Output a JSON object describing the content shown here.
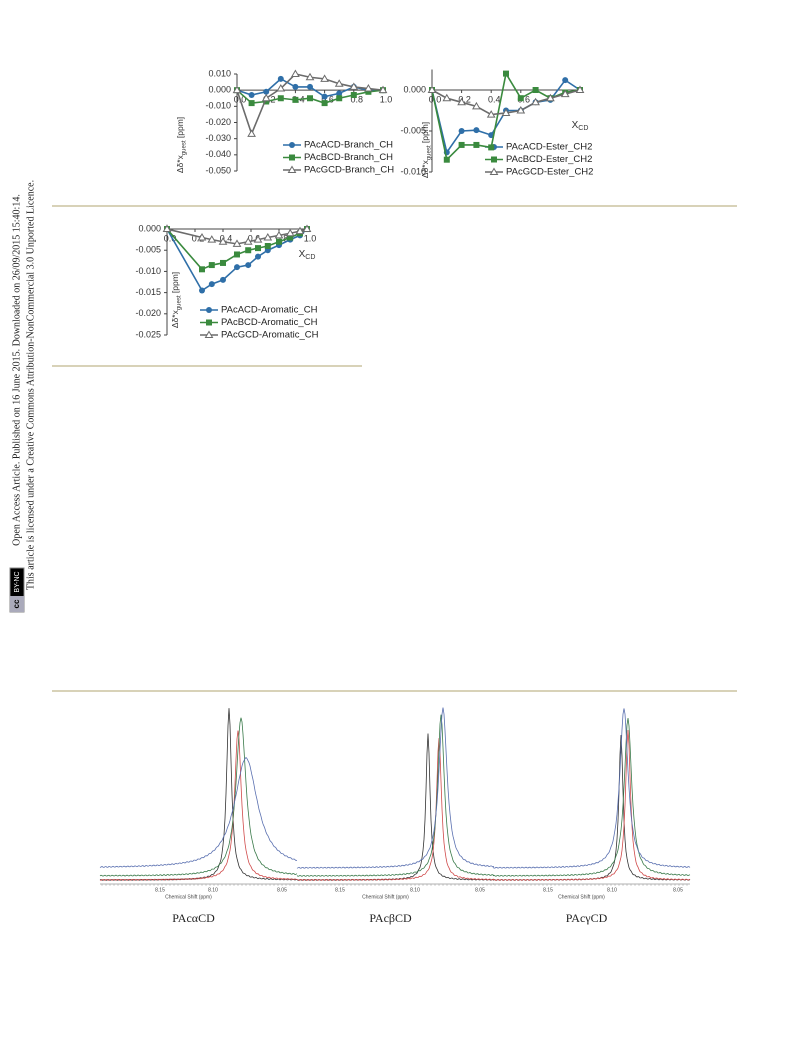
{
  "side_note": {
    "line1": "Open Access Article. Published on 16 June 2015. Downloaded on 26/09/2015 15:40:14.",
    "line2": "This article is licensed under a Creative Commons Attribution-NonCommercial 3.0 Unported Licence.",
    "badge_icon": "cc",
    "badge_text": "BY-NC"
  },
  "chart_data": [
    {
      "type": "line",
      "x": [
        0,
        0.1,
        0.2,
        0.3,
        0.4,
        0.5,
        0.6,
        0.7,
        0.8,
        0.9,
        1.0
      ],
      "xlim": [
        0,
        1
      ],
      "xticks": [
        {
          "value": 0,
          "label": "0.0"
        },
        0.2,
        0.4,
        0.6,
        0.8,
        {
          "value": 1,
          "label": "1.0"
        }
      ],
      "ylim": [
        -0.05,
        0.01
      ],
      "yticks": [
        {
          "value": 0.01,
          "label": "0.010"
        },
        {
          "value": 0,
          "label": "0.000"
        },
        {
          "value": -0.01,
          "label": "-0.010"
        },
        {
          "value": -0.02,
          "label": "-0.020"
        },
        {
          "value": -0.03,
          "label": "-0.030"
        },
        {
          "value": -0.04,
          "label": "-0.040"
        },
        {
          "value": -0.05,
          "label": "-0.050"
        }
      ],
      "ylabel": {
        "symbol": "Δδ*x",
        "sub": "guest",
        "unit": " [ppm]"
      },
      "series": [
        {
          "name": "PAcACD-Branch_CH",
          "color": "#2f6fa8",
          "marker": "circle",
          "values": [
            0,
            -0.003,
            -0.001,
            0.007,
            0.002,
            0.002,
            -0.004,
            -0.002,
            0.002,
            0,
            0
          ]
        },
        {
          "name": "PAcBCD-Branch_CH",
          "color": "#3a8a3e",
          "marker": "square",
          "values": [
            0,
            -0.008,
            -0.007,
            -0.005,
            -0.006,
            -0.005,
            -0.008,
            -0.005,
            -0.003,
            -0.001,
            0
          ]
        },
        {
          "name": "PAcGCD-Branch_CH",
          "color": "#6b6b6b",
          "marker": "triangle",
          "values": [
            0,
            -0.027,
            -0.005,
            0.001,
            0.01,
            0.008,
            0.007,
            0.004,
            0.002,
            0.001,
            0
          ]
        }
      ]
    },
    {
      "type": "line",
      "x": [
        0,
        0.1,
        0.2,
        0.3,
        0.4,
        0.5,
        0.6,
        0.7,
        0.8,
        0.9,
        1.0
      ],
      "xlim": [
        0,
        1
      ],
      "xticks": [
        {
          "value": 0,
          "label": "0.0"
        },
        0.2,
        0.4,
        0.6
      ],
      "ylim": [
        -0.01,
        0.0025
      ],
      "yticks": [
        {
          "value": 0,
          "label": "0.000"
        },
        {
          "value": -0.005,
          "label": "-0.005"
        },
        {
          "value": -0.01,
          "label": "-0.010"
        }
      ],
      "xlabel": {
        "text": "X",
        "sub": "CD"
      },
      "ylabel": {
        "symbol": "Δδ*x",
        "sub": "guest",
        "unit": " [ppm]"
      },
      "series": [
        {
          "name": "PAcACD-Ester_CH2",
          "color": "#2f6fa8",
          "marker": "circle",
          "values": [
            0,
            -0.0076,
            -0.005,
            -0.0049,
            -0.0055,
            -0.0025,
            -0.0025,
            -0.0015,
            -0.0012,
            0.0012,
            0
          ]
        },
        {
          "name": "PAcBCD-Ester_CH2",
          "color": "#3a8a3e",
          "marker": "square",
          "values": [
            0,
            -0.0085,
            -0.0067,
            -0.0067,
            -0.007,
            0.002,
            -0.001,
            0,
            -0.001,
            -0.0003,
            0
          ]
        },
        {
          "name": "PAcGCD-Ester_CH2",
          "color": "#6b6b6b",
          "marker": "triangle",
          "values": [
            0,
            -0.001,
            -0.0015,
            -0.002,
            -0.003,
            -0.0028,
            -0.0025,
            -0.0015,
            -0.001,
            -0.0005,
            0
          ]
        }
      ]
    },
    {
      "type": "line",
      "x": [
        0,
        0.25,
        0.32,
        0.4,
        0.5,
        0.58,
        0.65,
        0.72,
        0.8,
        0.88,
        0.95,
        1.0
      ],
      "xlim": [
        0,
        1
      ],
      "xticks": [
        {
          "value": 0,
          "label": "0.0"
        },
        0.2,
        0.4,
        0.6,
        0.8,
        {
          "value": 1,
          "label": "1.0"
        }
      ],
      "ylim": [
        -0.025,
        0.001
      ],
      "yticks": [
        {
          "value": 0,
          "label": "0.000"
        },
        {
          "value": -0.005,
          "label": "-0.005"
        },
        {
          "value": -0.01,
          "label": "-0.010"
        },
        {
          "value": -0.015,
          "label": "-0.015"
        },
        {
          "value": -0.02,
          "label": "-0.020"
        },
        {
          "value": -0.025,
          "label": "-0.025"
        }
      ],
      "xlabel": {
        "text": "X",
        "sub": "CD"
      },
      "ylabel": {
        "symbol": "Δδ*x",
        "sub": "guest",
        "unit": " [ppm]"
      },
      "series": [
        {
          "name": "PAcACD-Aromatic_CH",
          "color": "#2f6fa8",
          "marker": "circle",
          "values": [
            0,
            -0.0145,
            -0.013,
            -0.012,
            -0.009,
            -0.0085,
            -0.0065,
            -0.005,
            -0.0038,
            -0.0025,
            -0.0015,
            0
          ]
        },
        {
          "name": "PAcBCD-Aromatic_CH",
          "color": "#3a8a3e",
          "marker": "square",
          "values": [
            0,
            -0.0095,
            -0.0085,
            -0.008,
            -0.006,
            -0.005,
            -0.0045,
            -0.004,
            -0.003,
            -0.002,
            -0.001,
            0
          ]
        },
        {
          "name": "PAcGCD-Aromatic_CH",
          "color": "#6b6b6b",
          "marker": "triangle",
          "values": [
            0,
            -0.002,
            -0.0025,
            -0.003,
            -0.0035,
            -0.003,
            -0.0025,
            -0.002,
            -0.0015,
            -0.001,
            -0.0005,
            0
          ]
        }
      ]
    }
  ],
  "spectra": {
    "axis_label": "Chemical Shift (ppm)",
    "panels": [
      {
        "caption": "PAcαCD",
        "ticks": [
          "8.15",
          "8.10",
          "8.05"
        ]
      },
      {
        "caption": "PAcβCD",
        "ticks": [
          "8.15",
          "8.10",
          "8.05"
        ]
      },
      {
        "caption": "PAcγCD",
        "ticks": [
          "8.15",
          "8.10",
          "8.05"
        ]
      }
    ]
  }
}
